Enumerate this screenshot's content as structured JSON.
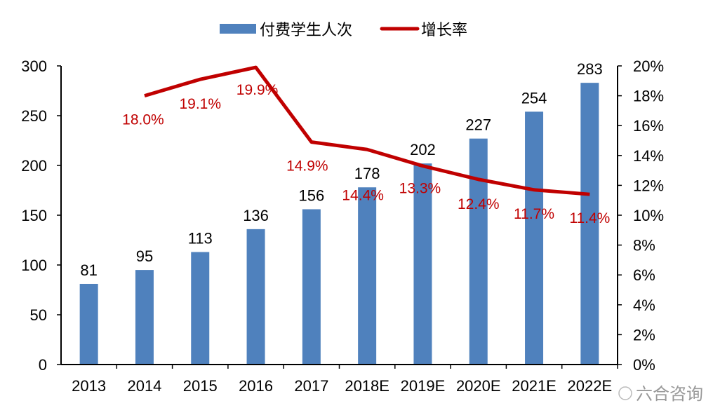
{
  "chart_data": {
    "type": "bar+line",
    "categories": [
      "2013",
      "2014",
      "2015",
      "2016",
      "2017",
      "2018E",
      "2019E",
      "2020E",
      "2021E",
      "2022E"
    ],
    "series": [
      {
        "name": "付费学生人次",
        "type": "bar",
        "axis": "left",
        "color": "#4f81bd",
        "values": [
          81,
          95,
          113,
          136,
          156,
          178,
          202,
          227,
          254,
          283
        ],
        "labels": [
          "81",
          "95",
          "113",
          "136",
          "156",
          "178",
          "202",
          "227",
          "254",
          "283"
        ]
      },
      {
        "name": "增长率",
        "type": "line",
        "axis": "right",
        "color": "#c00000",
        "values": [
          null,
          18.0,
          19.1,
          19.9,
          14.9,
          14.4,
          13.3,
          12.4,
          11.7,
          11.4
        ],
        "labels": [
          "",
          "18.0%",
          "19.1%",
          "19.9%",
          "14.9%",
          "14.4%",
          "13.3%",
          "12.4%",
          "11.7%",
          "11.4%"
        ]
      }
    ],
    "y_left": {
      "range": [
        0,
        300
      ],
      "ticks": [
        "0",
        "50",
        "100",
        "150",
        "200",
        "250",
        "300"
      ]
    },
    "y_right": {
      "range": [
        0,
        20
      ],
      "ticks": [
        "0%",
        "2%",
        "4%",
        "6%",
        "8%",
        "10%",
        "12%",
        "14%",
        "16%",
        "18%",
        "20%"
      ]
    },
    "legend": {
      "position": "top",
      "entries": [
        "付费学生人次",
        "增长率"
      ]
    },
    "grid": false
  },
  "watermark": "六合咨询"
}
